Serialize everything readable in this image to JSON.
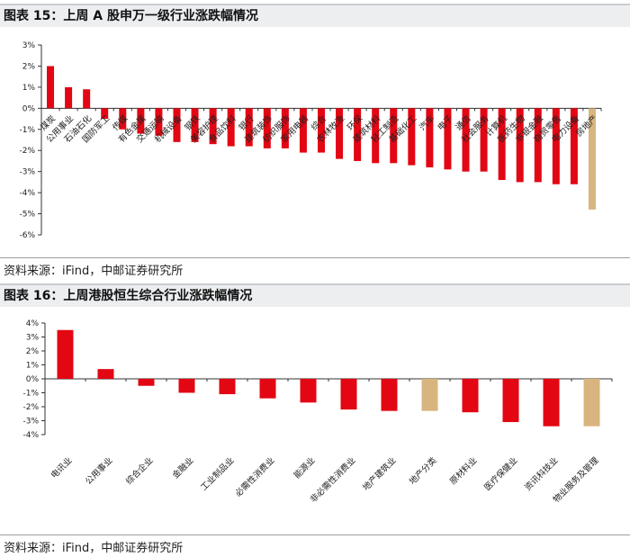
{
  "figure1": {
    "number": "图表 15：",
    "title": "上周 A 股申万一级行业涨跌幅情况",
    "source": "资料来源：iFind，中邮证券研究所"
  },
  "figure2": {
    "number": "图表 16：",
    "title": "上周港股恒生综合行业涨跌幅情况",
    "source": "资料来源：iFind，中邮证券研究所"
  },
  "colors": {
    "up_down": "#e30613",
    "highlight": "#d8b57e"
  },
  "chart_data": [
    {
      "type": "bar",
      "title": "上周 A 股申万一级行业涨跌幅情况",
      "ylim": [
        -6,
        3
      ],
      "yticks": [
        "3%",
        "2%",
        "1%",
        "0%",
        "-1%",
        "-2%",
        "-3%",
        "-4%",
        "-5%",
        "-6%"
      ],
      "grid": false,
      "categories": [
        "煤炭",
        "公用事业",
        "石油石化",
        "国防军工",
        "传媒",
        "有色金属",
        "交通运输",
        "机械设备",
        "钢铁",
        "美容护理",
        "食品饮料",
        "银行",
        "建筑装饰",
        "纺织服饰",
        "家用电器",
        "综合",
        "农林牧渔",
        "环保",
        "建筑材料",
        "轻工制造",
        "基础化工",
        "汽车",
        "电子",
        "通信",
        "社会服务",
        "计算机",
        "医药生物",
        "非银金融",
        "商贸零售",
        "电力设备",
        "房地产"
      ],
      "values": [
        2.0,
        1.0,
        0.9,
        -0.5,
        -1.0,
        -1.2,
        -1.3,
        -1.6,
        -1.6,
        -1.7,
        -1.8,
        -1.8,
        -1.9,
        -1.9,
        -2.1,
        -2.1,
        -2.4,
        -2.5,
        -2.6,
        -2.6,
        -2.7,
        -2.8,
        -2.9,
        -3.0,
        -3.0,
        -3.4,
        -3.5,
        -3.5,
        -3.6,
        -3.6,
        -4.8
      ],
      "highlight_index": [
        30
      ]
    },
    {
      "type": "bar",
      "title": "上周港股恒生综合行业涨跌幅情况",
      "ylim": [
        -4,
        4
      ],
      "yticks": [
        "4%",
        "3%",
        "2%",
        "1%",
        "0%",
        "-1%",
        "-2%",
        "-3%",
        "-4%"
      ],
      "grid": false,
      "categories": [
        "电讯业",
        "公用事业",
        "综合企业",
        "金融业",
        "工业制品业",
        "必需性消费业",
        "能源业",
        "非必需性消费业",
        "地产建筑业",
        "地产分类",
        "原材料业",
        "医疗保健业",
        "资讯科技业",
        "物业服务及管理"
      ],
      "values": [
        3.5,
        0.7,
        -0.5,
        -1.0,
        -1.1,
        -1.4,
        -1.7,
        -2.2,
        -2.3,
        -2.3,
        -2.4,
        -3.1,
        -3.4,
        -3.4
      ],
      "highlight_index": [
        9,
        13
      ]
    }
  ]
}
